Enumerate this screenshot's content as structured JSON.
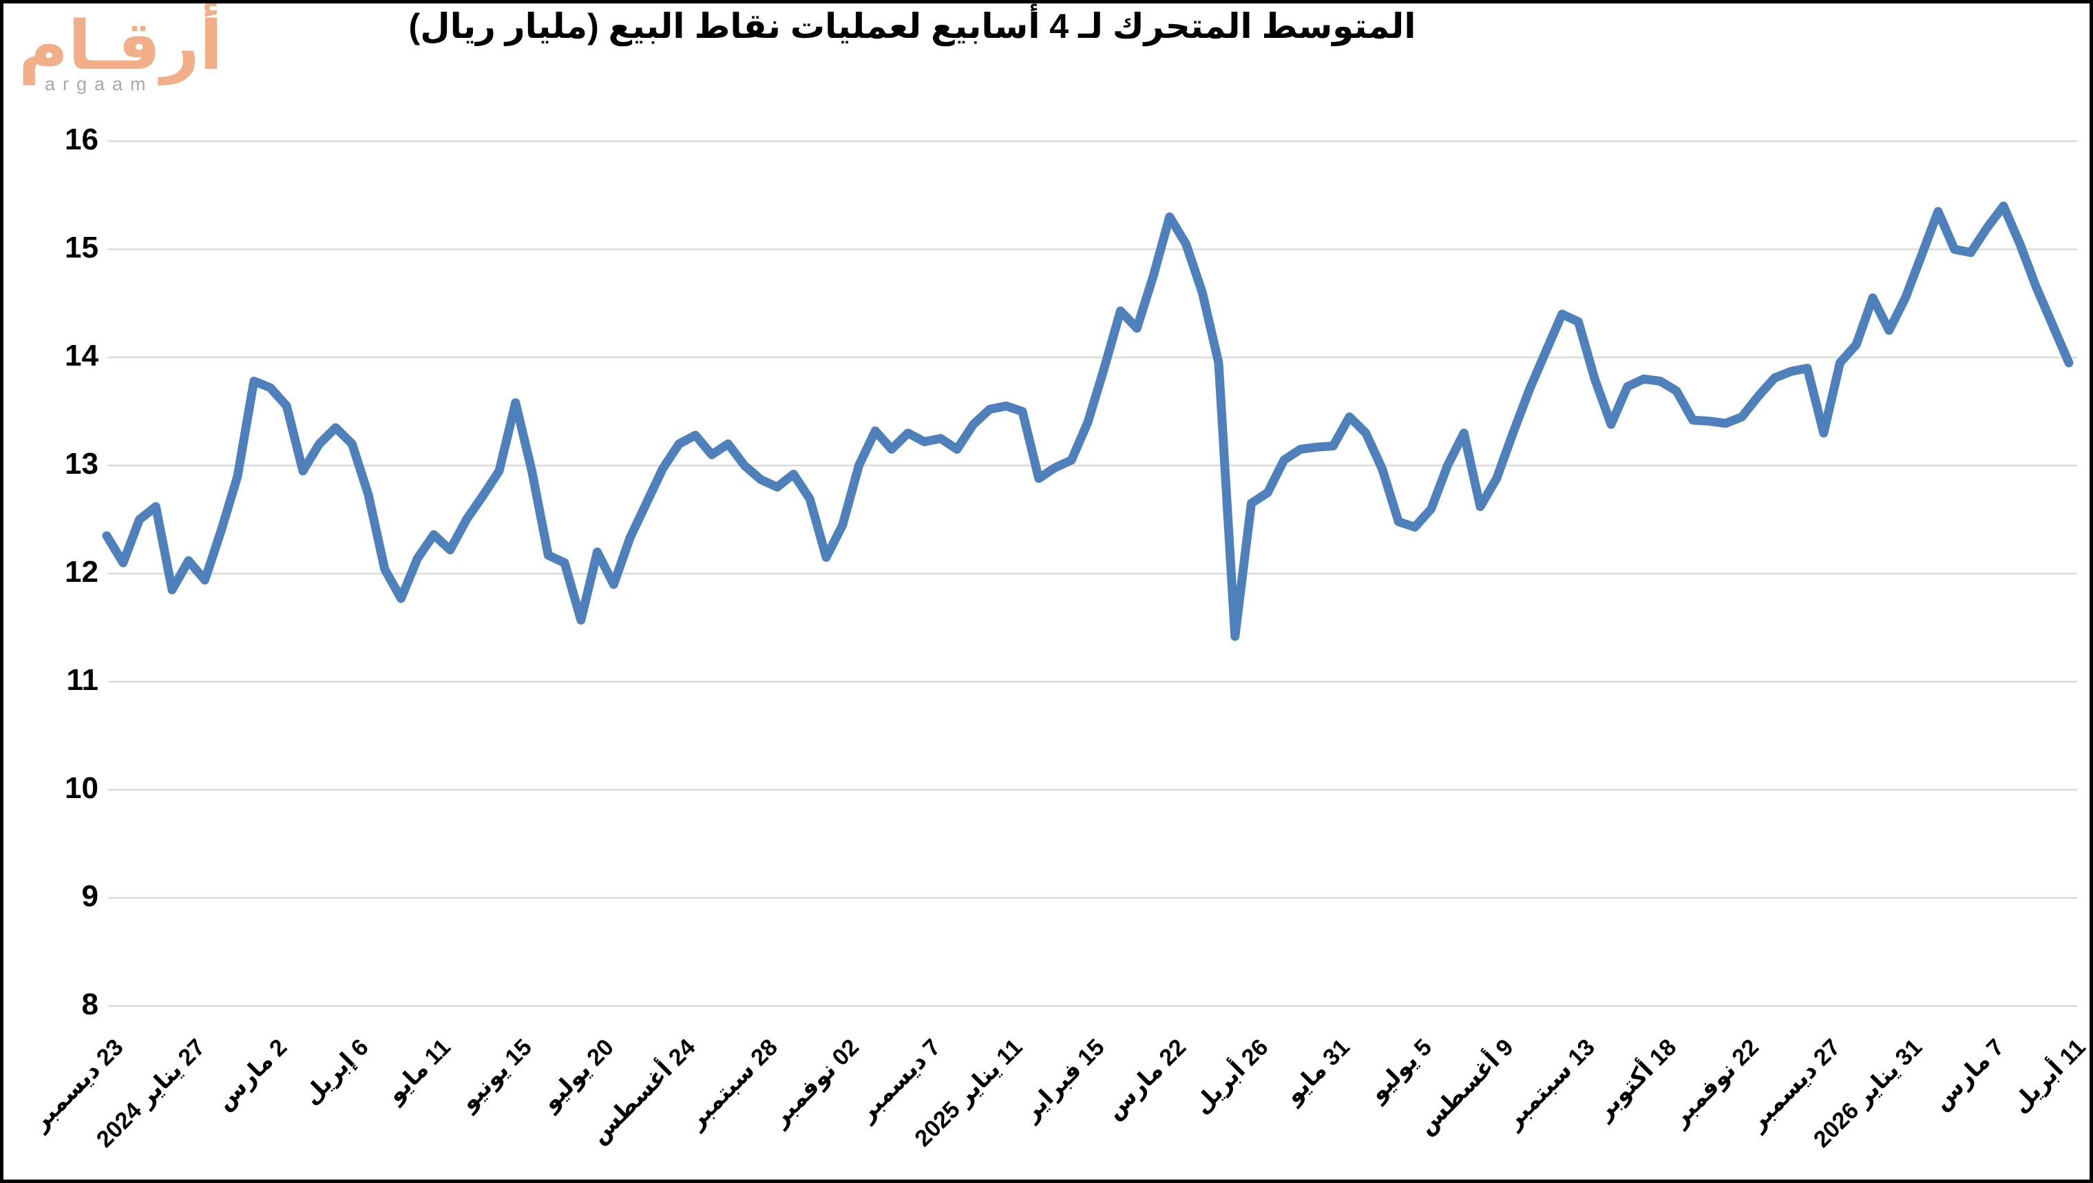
{
  "page": {
    "background": "#FFFFFF",
    "border_color": "#000000"
  },
  "logo": {
    "arabic": "أرقـام",
    "latin": "argaam",
    "arabic_color": "#F2AD89",
    "latin_color": "#A6A8AB"
  },
  "chart_data": {
    "type": "line",
    "title": "المتوسط المتحرك لـ 4 أسابيع لعمليات نقاط البيع (مليار ريال)",
    "ylabel": "",
    "xlabel": "",
    "ylim": [
      8,
      16
    ],
    "y_ticks": [
      16,
      15,
      14,
      13,
      12,
      11,
      10,
      9,
      8
    ],
    "grid": "horizontal",
    "legend": "none",
    "line_color": "#4E80BC",
    "gridline_color": "#D9D9D9",
    "x_tick_labels": [
      "23 ديسمبر",
      "27 يناير 2024",
      "2 مارس",
      "6 إبريل",
      "11 مايو",
      "15 يونيو",
      "20 يوليو",
      "24 أغسطس",
      "28 سبتمبر",
      "02 نوفمبر",
      "7 ديسمبر",
      "11 يناير 2025",
      "15 فبراير",
      "22 مارس",
      "26 أبريل",
      "31 مايو",
      "5 يوليو",
      "9 أغسطس",
      "13 سبتمبر",
      "18 أكتوبر",
      "22 نوفمبر",
      "27 ديسمبر",
      "31 يناير 2026",
      "7 مارس",
      "11 أبريل"
    ],
    "x_tick_interval_points": 5,
    "series": [
      {
        "name": "weekly-4w-moving-average",
        "values": [
          12.35,
          12.1,
          12.5,
          12.62,
          11.85,
          12.12,
          11.94,
          12.4,
          12.9,
          13.78,
          13.72,
          13.55,
          12.95,
          13.2,
          13.35,
          13.2,
          12.73,
          12.04,
          11.77,
          12.14,
          12.36,
          12.22,
          12.5,
          12.72,
          12.95,
          13.58,
          12.95,
          12.17,
          12.1,
          11.57,
          12.2,
          11.9,
          12.33,
          12.65,
          12.97,
          13.2,
          13.28,
          13.1,
          13.2,
          13.0,
          12.87,
          12.8,
          12.92,
          12.69,
          12.15,
          12.45,
          13.0,
          13.32,
          13.15,
          13.3,
          13.22,
          13.25,
          13.15,
          13.38,
          13.52,
          13.55,
          13.5,
          12.88,
          12.98,
          13.05,
          13.4,
          13.9,
          14.43,
          14.27,
          14.75,
          15.3,
          15.05,
          14.6,
          13.95,
          11.42,
          12.65,
          12.75,
          13.05,
          13.15,
          13.17,
          13.18,
          13.45,
          13.3,
          12.97,
          12.48,
          12.43,
          12.6,
          13.0,
          13.3,
          12.62,
          12.88,
          13.3,
          13.7,
          14.05,
          14.4,
          14.33,
          13.8,
          13.38,
          13.73,
          13.8,
          13.78,
          13.69,
          13.42,
          13.41,
          13.39,
          13.45,
          13.64,
          13.81,
          13.87,
          13.9,
          13.3,
          13.95,
          14.12,
          14.55,
          14.25,
          14.55,
          14.95,
          15.35,
          15.0,
          14.97,
          15.2,
          15.4,
          15.05,
          14.65,
          14.3,
          13.95
        ]
      }
    ]
  }
}
